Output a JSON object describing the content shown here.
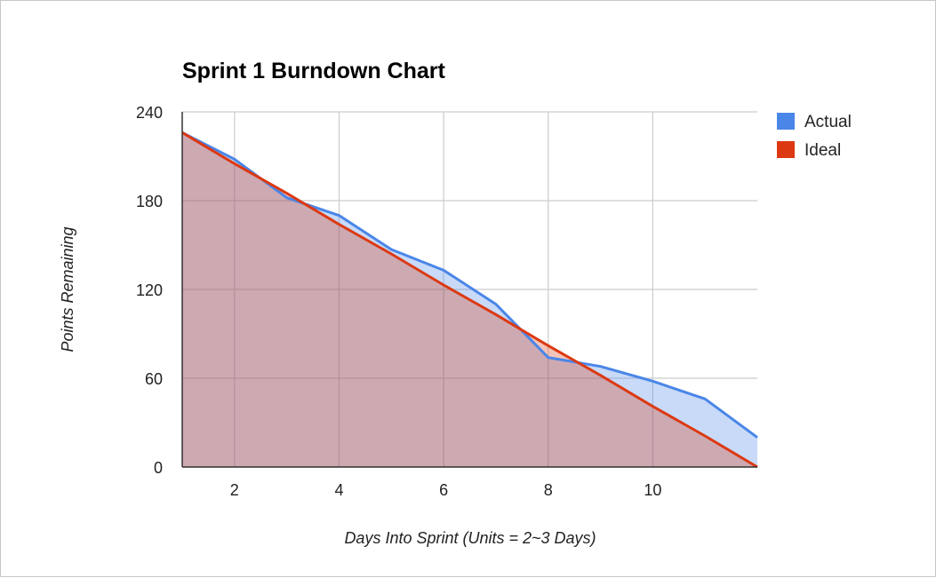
{
  "chart_data": {
    "type": "area",
    "title": "Sprint 1 Burndown Chart",
    "xlabel": "Days Into Sprint (Units = 2~3 Days)",
    "ylabel": "Points Remaining",
    "xlim": [
      1,
      12
    ],
    "ylim": [
      0,
      240
    ],
    "x_ticks": [
      "2",
      "4",
      "6",
      "8",
      "10"
    ],
    "y_ticks": [
      "0",
      "60",
      "120",
      "180",
      "240"
    ],
    "grid": true,
    "legend_position": "right-top",
    "x": [
      1,
      2,
      3,
      4,
      5,
      6,
      7,
      8,
      9,
      10,
      11,
      12
    ],
    "series": [
      {
        "name": "Actual",
        "color": "#4a86e8",
        "values": [
          226,
          208,
          182,
          170,
          147,
          133,
          110,
          74,
          68,
          58,
          46,
          20
        ]
      },
      {
        "name": "Ideal",
        "color": "#dc3912",
        "values": [
          226,
          205,
          185,
          164,
          144,
          123,
          103,
          82,
          62,
          41,
          21,
          0
        ]
      }
    ]
  }
}
